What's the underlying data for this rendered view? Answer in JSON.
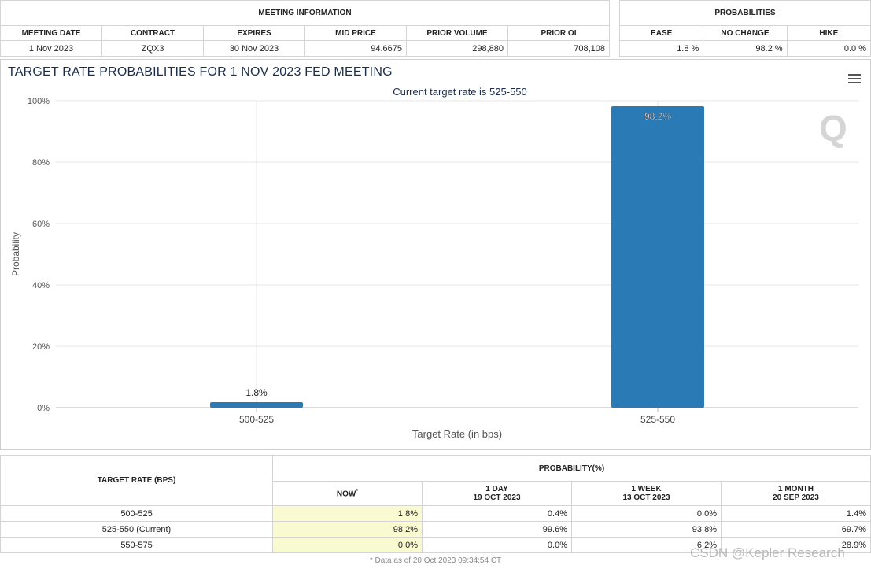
{
  "meeting_info": {
    "group_title": "MEETING INFORMATION",
    "headers": [
      "MEETING DATE",
      "CONTRACT",
      "EXPIRES",
      "MID PRICE",
      "PRIOR VOLUME",
      "PRIOR OI"
    ],
    "values": [
      "1 Nov 2023",
      "ZQX3",
      "30 Nov 2023",
      "94.6675",
      "298,880",
      "708,108"
    ]
  },
  "probabilities": {
    "group_title": "PROBABILITIES",
    "headers": [
      "EASE",
      "NO CHANGE",
      "HIKE"
    ],
    "values": [
      "1.8 %",
      "98.2 %",
      "0.0 %"
    ]
  },
  "chart": {
    "menu_icon": "hamburger-menu-icon",
    "logo_text": "Q"
  },
  "chart_data": {
    "type": "bar",
    "title": "TARGET RATE PROBABILITIES FOR 1 NOV 2023 FED MEETING",
    "subtitle": "Current target rate is 525-550",
    "xlabel": "Target Rate (in bps)",
    "ylabel": "Probability",
    "categories": [
      "500-525",
      "525-550"
    ],
    "values": [
      1.8,
      98.2
    ],
    "data_labels": [
      "1.8%",
      "98.2%"
    ],
    "ylim": [
      0,
      100
    ],
    "yticks": [
      "0%",
      "20%",
      "40%",
      "60%",
      "80%",
      "100%"
    ],
    "ytick_values": [
      0,
      20,
      40,
      60,
      80,
      100
    ],
    "grid": true,
    "bar_color": "#2a7ab5"
  },
  "history": {
    "row_header": "TARGET RATE (BPS)",
    "group_title": "PROBABILITY(%)",
    "columns": [
      {
        "label": "NOW",
        "sup": "*",
        "date": ""
      },
      {
        "label": "1 DAY",
        "date": "19 OCT 2023"
      },
      {
        "label": "1 WEEK",
        "date": "13 OCT 2023"
      },
      {
        "label": "1 MONTH",
        "date": "20 SEP 2023"
      }
    ],
    "rows": [
      {
        "rate": "500-525",
        "now": "1.8%",
        "d1": "0.4%",
        "w1": "0.0%",
        "m1": "1.4%"
      },
      {
        "rate": "525-550 (Current)",
        "now": "98.2%",
        "d1": "99.6%",
        "w1": "93.8%",
        "m1": "69.7%"
      },
      {
        "rate": "550-575",
        "now": "0.0%",
        "d1": "0.0%",
        "w1": "6.2%",
        "m1": "28.9%"
      }
    ],
    "footnote": "* Data as of 20 Oct 2023 09:34:54 CT"
  },
  "watermark": "CSDN @Kepler Research"
}
